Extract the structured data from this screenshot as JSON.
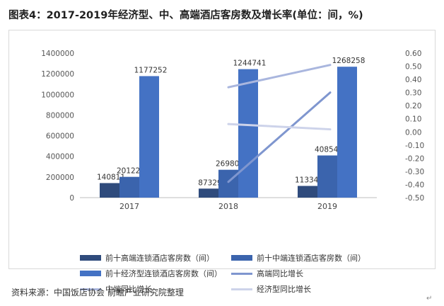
{
  "title": "图表4：2017-2019年经济型、中、高端酒店客房数及增长率(单位：间，%)",
  "source": "资料来源：中国饭店协会 前瞻产业研究院整理",
  "enter_mark": "↵",
  "colors": {
    "high": "#2f4b7c",
    "mid": "#3b64ad",
    "econ": "#4472c4",
    "high_growth": "#7f96cf",
    "mid_growth": "#a9b6de",
    "econ_growth": "#cdd3ea",
    "axis_text": "#555555",
    "grid": "#e6e6e6"
  },
  "chart_data": {
    "type": "bar",
    "categories": [
      "2017",
      "2018",
      "2019"
    ],
    "series": [
      {
        "name": "前十高端连锁酒店客房数（间）",
        "kind": "bar",
        "axis": "left",
        "values": [
          140811,
          87329,
          113346
        ]
      },
      {
        "name": "前十中端连锁酒店客房数（间）",
        "kind": "bar",
        "axis": "left",
        "values": [
          201222,
          269805,
          408545
        ]
      },
      {
        "name": "前十经济型连锁酒店客房数（间）",
        "kind": "bar",
        "axis": "left",
        "values": [
          1177252,
          1244741,
          1268258
        ]
      },
      {
        "name": "高端同比增长",
        "kind": "line",
        "axis": "right",
        "values": [
          null,
          -0.38,
          0.3
        ]
      },
      {
        "name": "中端同比增长",
        "kind": "line",
        "axis": "right",
        "values": [
          null,
          0.34,
          0.51
        ]
      },
      {
        "name": "经济型同比增长",
        "kind": "line",
        "axis": "right",
        "values": [
          null,
          0.06,
          0.02
        ]
      }
    ],
    "data_labels": [
      "140811",
      "201222",
      "1177252",
      "87329",
      "269805",
      "1244741",
      "113346",
      "408545",
      "1268258"
    ],
    "y_left": {
      "min": 0,
      "max": 1400000,
      "ticks": [
        "0",
        "200000",
        "400000",
        "600000",
        "800000",
        "1000000",
        "1200000",
        "1400000"
      ]
    },
    "y_right": {
      "min": -0.5,
      "max": 0.6,
      "ticks": [
        "-0.50",
        "-0.40",
        "-0.30",
        "-0.20",
        "-0.10",
        "0.00",
        "0.10",
        "0.20",
        "0.30",
        "0.40",
        "0.50",
        "0.60"
      ]
    },
    "legend": "bottom",
    "grid": false
  }
}
